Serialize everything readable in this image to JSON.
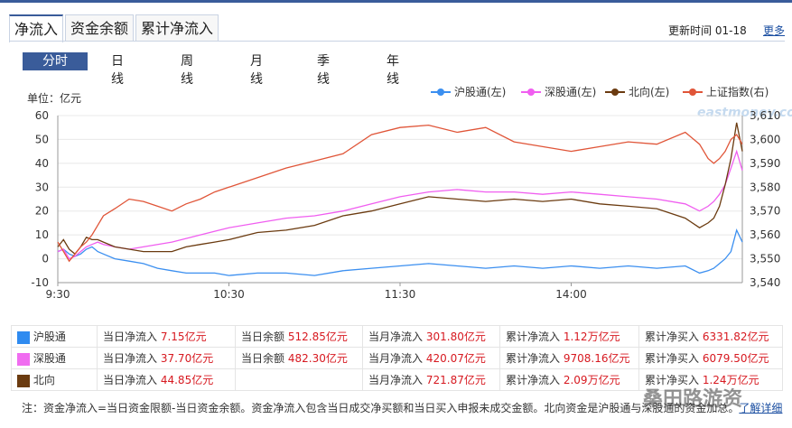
{
  "tabs": [
    "净流入",
    "资金余额",
    "累计净流入"
  ],
  "update": {
    "label": "更新时间",
    "date": "01-18"
  },
  "more": "更多",
  "periods": [
    "分时",
    "日线",
    "周线",
    "月线",
    "季线",
    "年线"
  ],
  "unit": "单位：亿元",
  "legend": [
    {
      "name": "沪股通(左)",
      "color": "#3b8ff0"
    },
    {
      "name": "深股通(左)",
      "color": "#f05ef0"
    },
    {
      "name": "北向(左)",
      "color": "#6b3b10"
    },
    {
      "name": "上证指数(右)",
      "color": "#e05538"
    }
  ],
  "watermark_chart": "eastmoney.com",
  "chart_data": {
    "type": "line",
    "x_ticks": [
      "9:30",
      "10:30",
      "11:30",
      "14:00"
    ],
    "y_left": {
      "ticks": [
        60,
        50,
        40,
        30,
        20,
        10,
        0,
        -10
      ],
      "range": [
        -10,
        60
      ]
    },
    "y_right": {
      "ticks": [
        "3,610",
        "3,600",
        "3,590",
        "3,580",
        "3,570",
        "3,560",
        "3,550",
        "3,540"
      ],
      "range": [
        3540,
        3610
      ]
    },
    "series": [
      {
        "name": "沪股通(左)",
        "axis": "left",
        "color": "#3b8ff0",
        "x": [
          0,
          2,
          4,
          6,
          8,
          10,
          12,
          14,
          16,
          20,
          25,
          30,
          35,
          40,
          45,
          50,
          55,
          60,
          70,
          80,
          90,
          100,
          110,
          120,
          130,
          140,
          150,
          160,
          170,
          180,
          190,
          200,
          210,
          220,
          225,
          228,
          230,
          232,
          234,
          236,
          238,
          240
        ],
        "values": [
          3,
          4,
          2,
          1,
          2,
          4,
          5,
          3,
          2,
          0,
          -1,
          -2,
          -4,
          -5,
          -6,
          -6,
          -6,
          -7,
          -6,
          -6,
          -7,
          -5,
          -4,
          -3,
          -2,
          -3,
          -4,
          -3,
          -4,
          -3,
          -4,
          -3,
          -4,
          -3,
          -6,
          -5,
          -4,
          -2,
          0,
          3,
          12,
          7
        ]
      },
      {
        "name": "深股通(左)",
        "axis": "left",
        "color": "#f05ef0",
        "x": [
          0,
          2,
          4,
          6,
          8,
          10,
          12,
          14,
          16,
          20,
          25,
          30,
          40,
          50,
          60,
          70,
          80,
          90,
          100,
          110,
          120,
          130,
          140,
          150,
          160,
          170,
          180,
          190,
          200,
          210,
          220,
          225,
          228,
          230,
          232,
          234,
          236,
          238,
          240
        ],
        "values": [
          3,
          4,
          0,
          1,
          3,
          5,
          6,
          7,
          6,
          5,
          4,
          5,
          7,
          10,
          13,
          15,
          17,
          18,
          20,
          23,
          26,
          28,
          29,
          28,
          28,
          27,
          28,
          27,
          26,
          25,
          23,
          20,
          22,
          24,
          27,
          31,
          38,
          45,
          37
        ]
      },
      {
        "name": "北向(左)",
        "axis": "left",
        "color": "#6b3b10",
        "x": [
          0,
          2,
          4,
          6,
          8,
          10,
          12,
          14,
          16,
          20,
          25,
          30,
          35,
          40,
          45,
          50,
          55,
          60,
          70,
          80,
          90,
          100,
          110,
          120,
          130,
          140,
          150,
          160,
          170,
          180,
          190,
          200,
          210,
          220,
          225,
          228,
          230,
          232,
          234,
          236,
          238,
          240
        ],
        "values": [
          5,
          8,
          4,
          2,
          5,
          9,
          8,
          8,
          7,
          5,
          4,
          3,
          3,
          3,
          5,
          6,
          7,
          8,
          11,
          12,
          14,
          18,
          20,
          23,
          26,
          25,
          24,
          25,
          24,
          25,
          23,
          22,
          21,
          17,
          13,
          15,
          17,
          22,
          31,
          42,
          57,
          45
        ]
      },
      {
        "name": "上证指数(右)",
        "axis": "right",
        "color": "#e05538",
        "x": [
          0,
          2,
          4,
          6,
          8,
          10,
          12,
          14,
          16,
          20,
          25,
          30,
          35,
          40,
          45,
          50,
          55,
          60,
          70,
          80,
          90,
          100,
          110,
          120,
          130,
          140,
          150,
          160,
          170,
          180,
          190,
          200,
          210,
          220,
          225,
          228,
          230,
          232,
          234,
          236,
          238,
          240
        ],
        "values": [
          3557,
          3553,
          3549,
          3552,
          3555,
          3557,
          3560,
          3564,
          3568,
          3571,
          3575,
          3574,
          3572,
          3570,
          3573,
          3575,
          3578,
          3580,
          3584,
          3588,
          3591,
          3594,
          3602,
          3605,
          3606,
          3603,
          3605,
          3599,
          3597,
          3595,
          3597,
          3599,
          3598,
          3603,
          3598,
          3592,
          3590,
          3592,
          3595,
          3600,
          3602,
          3598
        ]
      }
    ]
  },
  "info": {
    "rows": [
      {
        "name": "沪股通",
        "color": "#2f8bf0",
        "c1_label": "当日净流入",
        "c1_val": "7.15亿元",
        "c2_label": "当日余额",
        "c2_val": "512.85亿元",
        "c3_label": "当月净流入",
        "c3_val": "301.80亿元",
        "c4_label": "累计净流入",
        "c4_val": "1.12万亿元",
        "c5_label": "累计净买入",
        "c5_val": "6331.82亿元"
      },
      {
        "name": "深股通",
        "color": "#f06cf0",
        "c1_label": "当日净流入",
        "c1_val": "37.70亿元",
        "c2_label": "当日余额",
        "c2_val": "482.30亿元",
        "c3_label": "当月净流入",
        "c3_val": "420.07亿元",
        "c4_label": "累计净流入",
        "c4_val": "9708.16亿元",
        "c5_label": "累计净买入",
        "c5_val": "6079.50亿元"
      },
      {
        "name": "北向",
        "color": "#6b3b10",
        "c1_label": "当日净流入",
        "c1_val": "44.85亿元",
        "c2_label": "",
        "c2_val": "",
        "c3_label": "当月净流入",
        "c3_val": "721.87亿元",
        "c4_label": "累计净流入",
        "c4_val": "2.09万亿元",
        "c5_label": "累计净买入",
        "c5_val": "1.24万亿元"
      }
    ]
  },
  "note": {
    "text": "注：资金净流入=当日资金限额-当日资金余额。资金净流入包含当日成交净买额和当日买入申报未成交金额。北向资金是沪股通与深股通的资金加总。",
    "link": "了解详细"
  },
  "watermark": "桑田路游资"
}
